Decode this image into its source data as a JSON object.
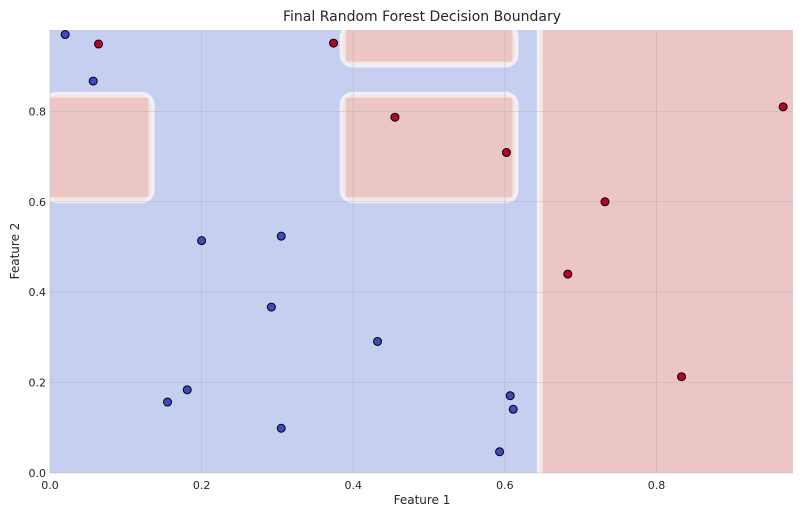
{
  "chart_data": {
    "type": "scatter",
    "title": "Final Random Forest Decision Boundary",
    "xlabel": "Feature 1",
    "ylabel": "Feature 2",
    "xlim": [
      0.0,
      0.98
    ],
    "ylim": [
      0.0,
      0.98
    ],
    "xticks": [
      0.0,
      0.2,
      0.4,
      0.6,
      0.8
    ],
    "xtick_labels": [
      "0.0",
      "0.2",
      "0.4",
      "0.6",
      "0.8"
    ],
    "yticks": [
      0.0,
      0.2,
      0.4,
      0.6,
      0.8
    ],
    "ytick_labels": [
      "0.0",
      "0.2",
      "0.4",
      "0.6",
      "0.8"
    ],
    "grid": true,
    "colors": {
      "class0_region": "#c7cff0",
      "class1_region": "#ecc6c6",
      "class0_point": "#3b4cc0",
      "class1_point": "#b40426",
      "grid": "#b0b0b0"
    },
    "decision_regions": [
      {
        "class": 1,
        "x": [
          0.0,
          0.13
        ],
        "y": [
          0.61,
          0.83
        ]
      },
      {
        "class": 1,
        "x": [
          0.39,
          0.61
        ],
        "y": [
          0.61,
          0.83
        ]
      },
      {
        "class": 1,
        "x": [
          0.39,
          0.61
        ],
        "y": [
          0.91,
          0.98
        ]
      },
      {
        "class": 1,
        "x": [
          0.65,
          0.98
        ],
        "y": [
          0.0,
          0.98
        ]
      }
    ],
    "series": [
      {
        "class": 0,
        "points": [
          [
            0.02,
            0.97
          ],
          [
            0.057,
            0.867
          ],
          [
            0.2,
            0.514
          ],
          [
            0.305,
            0.524
          ],
          [
            0.292,
            0.367
          ],
          [
            0.432,
            0.291
          ],
          [
            0.181,
            0.184
          ],
          [
            0.155,
            0.157
          ],
          [
            0.305,
            0.099
          ],
          [
            0.607,
            0.171
          ],
          [
            0.611,
            0.141
          ],
          [
            0.593,
            0.047
          ]
        ]
      },
      {
        "class": 1,
        "points": [
          [
            0.064,
            0.949
          ],
          [
            0.374,
            0.951
          ],
          [
            0.455,
            0.787
          ],
          [
            0.602,
            0.709
          ],
          [
            0.732,
            0.6
          ],
          [
            0.683,
            0.44
          ],
          [
            0.833,
            0.213
          ],
          [
            0.967,
            0.81
          ]
        ]
      }
    ]
  }
}
